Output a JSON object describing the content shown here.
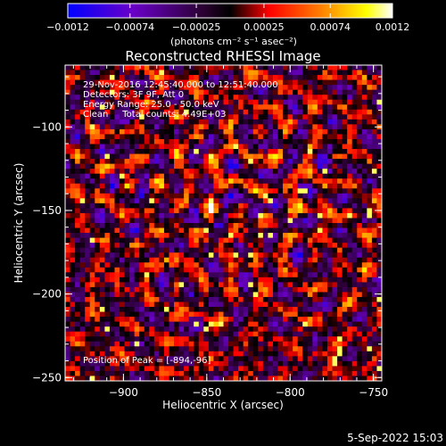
{
  "chart_data": {
    "type": "heatmap",
    "title": "Reconstructed RHESSI Image",
    "xlabel": "Heliocentric X (arcsec)",
    "ylabel": "Heliocentric Y (arcsec)",
    "xlim": [
      -935,
      -745
    ],
    "ylim": [
      -252,
      -63
    ],
    "x_ticks": [
      -900,
      -850,
      -800,
      -750
    ],
    "x_tick_labels": [
      "−900",
      "−850",
      "−800",
      "−750"
    ],
    "y_ticks": [
      -100,
      -150,
      -200,
      -250
    ],
    "y_tick_labels": [
      "−100",
      "−150",
      "−200",
      "−250"
    ],
    "colorbar": {
      "range": [
        -0.0012,
        0.0012
      ],
      "tick_values": [
        -0.0012,
        -0.00074,
        -0.00025,
        0.00025,
        0.00074,
        0.0012
      ],
      "tick_labels": [
        "−0.0012",
        "−0.00074",
        "−0.00025",
        "0.00025",
        "0.00074",
        "0.0012"
      ],
      "units": "(photons cm⁻² s⁻¹ asec⁻²)",
      "colormap": [
        "#0000ff",
        "#6a00c8",
        "#2a0030",
        "#000000",
        "#ff0000",
        "#ff8000",
        "#ffff00",
        "#ffffff"
      ]
    },
    "annotations": {
      "time_line": "29-Nov-2016 12:45:40.000 to 12:51:40.000",
      "detectors_line": "Detectors: 3F 9F, Att 0",
      "energy_line": "Energy Range: 25.0 - 50.0 keV",
      "clean_line": "Clean     Total counts: 4.49E+03",
      "peak_line": "Position of Peak = [-894,-96]"
    },
    "peak_position": [
      -894,
      -96
    ],
    "grid": false
  },
  "footer": {
    "timestamp": "5-Sep-2022 15:03"
  }
}
